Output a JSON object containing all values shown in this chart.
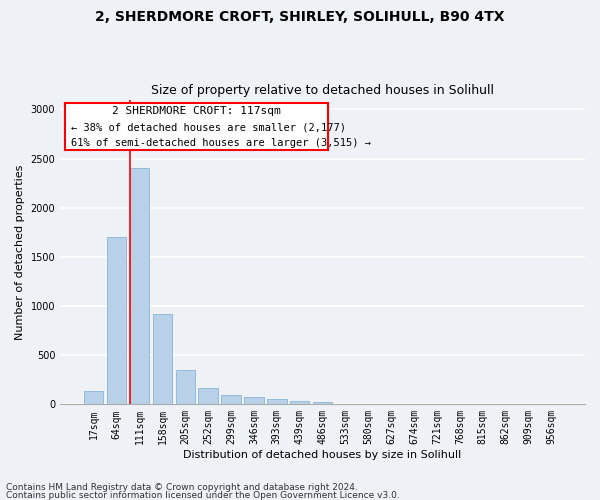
{
  "title_line1": "2, SHERDMORE CROFT, SHIRLEY, SOLIHULL, B90 4TX",
  "title_line2": "Size of property relative to detached houses in Solihull",
  "xlabel": "Distribution of detached houses by size in Solihull",
  "ylabel": "Number of detached properties",
  "categories": [
    "17sqm",
    "64sqm",
    "111sqm",
    "158sqm",
    "205sqm",
    "252sqm",
    "299sqm",
    "346sqm",
    "393sqm",
    "439sqm",
    "486sqm",
    "533sqm",
    "580sqm",
    "627sqm",
    "674sqm",
    "721sqm",
    "768sqm",
    "815sqm",
    "862sqm",
    "909sqm",
    "956sqm"
  ],
  "values": [
    140,
    1700,
    2400,
    920,
    350,
    165,
    100,
    75,
    55,
    30,
    20,
    5,
    2,
    0,
    0,
    0,
    0,
    0,
    0,
    0,
    0
  ],
  "bar_color": "#b8d0e8",
  "bar_edgecolor": "#7aafd4",
  "ylim": [
    0,
    3100
  ],
  "yticks": [
    0,
    500,
    1000,
    1500,
    2000,
    2500,
    3000
  ],
  "annotation_box_text_line1": "2 SHERDMORE CROFT: 117sqm",
  "annotation_box_text_line2": "← 38% of detached houses are smaller (2,177)",
  "annotation_box_text_line3": "61% of semi-detached houses are larger (3,515) →",
  "red_line_bar_index": 2,
  "footnote_line1": "Contains HM Land Registry data © Crown copyright and database right 2024.",
  "footnote_line2": "Contains public sector information licensed under the Open Government Licence v3.0.",
  "bg_color": "#eef2f7",
  "plot_bg_color": "#eef2f7",
  "grid_color": "#ffffff",
  "title_fontsize": 10,
  "subtitle_fontsize": 9,
  "axis_label_fontsize": 8,
  "tick_fontsize": 7,
  "annotation_fontsize": 8,
  "footnote_fontsize": 6.5
}
